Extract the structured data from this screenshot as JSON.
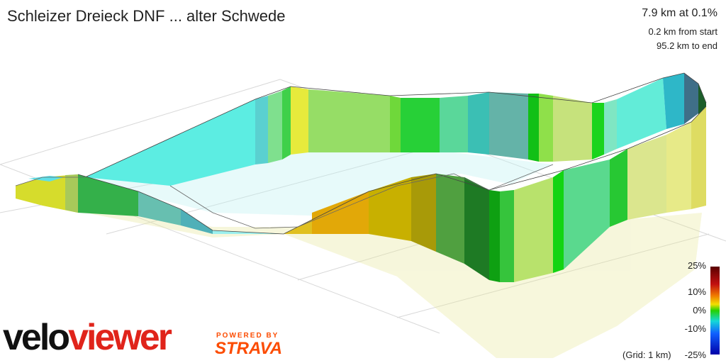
{
  "route": {
    "title": "Schleizer Dreieck DNF ... alter Schwede"
  },
  "stats": {
    "position": "7.9 km at 0.1%",
    "from_start": "0.2 km from start",
    "to_end": "95.2 km to end"
  },
  "legend": {
    "labels": [
      "25%",
      "10%",
      "0%",
      "-10%",
      "-25%"
    ],
    "grid_note": "(Grid: 1 km)"
  },
  "branding": {
    "logo_part1": "velo",
    "logo_part2": "viewer",
    "powered_by": "POWERED BY",
    "strava": "STRAVA"
  }
}
